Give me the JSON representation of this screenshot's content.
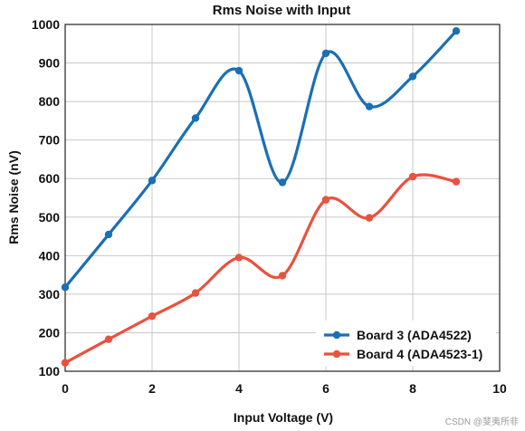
{
  "chart_data": {
    "type": "line",
    "title": "Rms Noise with Input",
    "xlabel": "Input Voltage (V)",
    "ylabel": "Rms Noise (nV)",
    "xlim": [
      0,
      10
    ],
    "ylim": [
      100,
      1000
    ],
    "x_ticks": [
      "0",
      "2",
      "4",
      "6",
      "8",
      "10"
    ],
    "y_ticks": [
      "100",
      "200",
      "300",
      "400",
      "500",
      "600",
      "700",
      "800",
      "900",
      "1000"
    ],
    "grid": true,
    "legend_position": "bottom-right",
    "x": [
      0,
      1,
      2,
      3,
      4,
      5,
      6,
      7,
      8,
      9
    ],
    "series": [
      {
        "name": "Board 3 (ADA4522)",
        "color": "#1a6fb5",
        "values": [
          318,
          455,
          595,
          757,
          880,
          590,
          925,
          787,
          865,
          983
        ]
      },
      {
        "name": "Board 4 (ADA4523-1)",
        "color": "#e8523e",
        "values": [
          122,
          183,
          243,
          303,
          395,
          348,
          545,
          498,
          605,
          592
        ]
      }
    ]
  },
  "watermark": "CSDN @斐夷所非"
}
